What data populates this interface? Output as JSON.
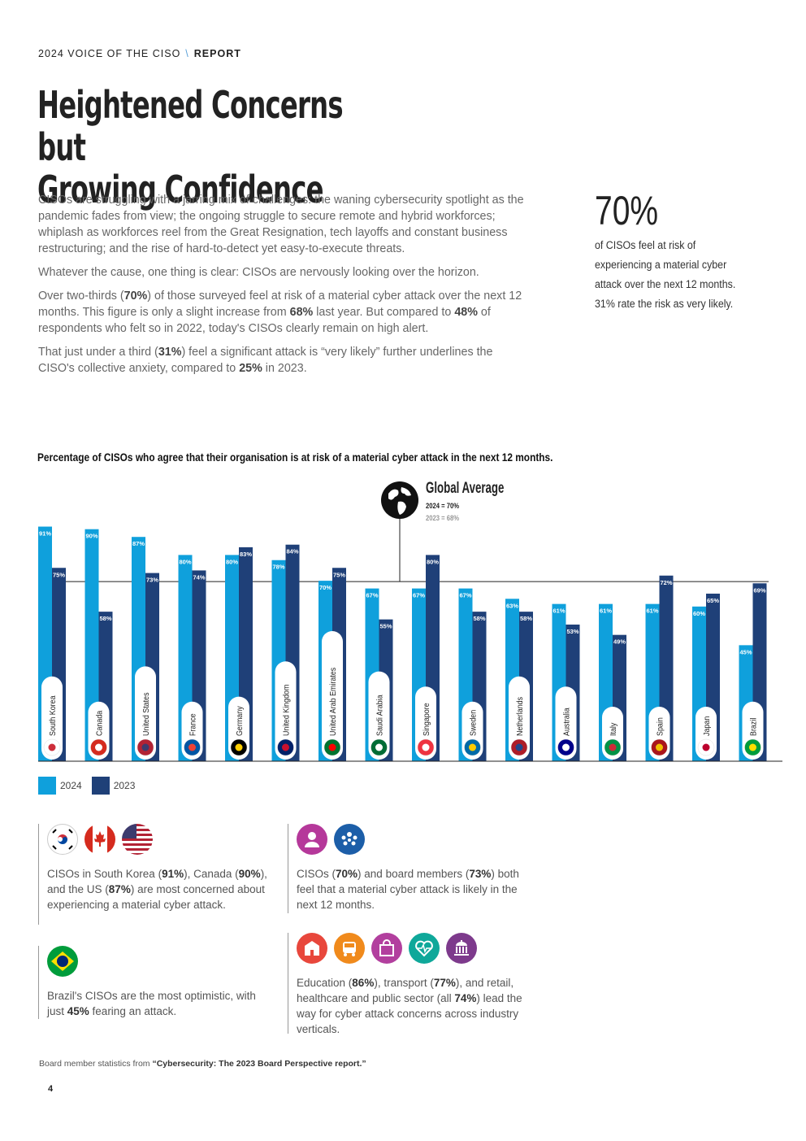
{
  "header": {
    "left": "2024 VOICE OF THE CISO",
    "sep": "\\",
    "right": "REPORT"
  },
  "title": {
    "line1": "Heightened Concerns but",
    "line2": "Growing Confidence"
  },
  "body": {
    "p1": "CISOs are struggling with a jarring mix of challenges: the waning cybersecurity spotlight as the pandemic fades from view; the ongoing struggle to secure remote and hybrid workforces; whiplash as workforces reel from the Great Resignation, tech layoffs and constant business restructuring; and the rise of hard-to-detect yet easy-to-execute threats.",
    "p2": "Whatever the cause, one thing is clear: CISOs are nervously looking over the horizon.",
    "p3a": "Over two-thirds (",
    "p3b": "70%",
    "p3c": ") of those surveyed feel at risk of a material cyber attack over the next 12 months. This figure is only a slight increase from ",
    "p3d": "68%",
    "p3e": " last year. But compared to ",
    "p3f": "48%",
    "p3g": " of respondents who felt so in 2022, today's CISOs clearly remain on high alert.",
    "p4a": "That just under a third (",
    "p4b": "31%",
    "p4c": ") feel a significant attack is “very likely” further underlines the CISO's collective anxiety, compared to ",
    "p4d": "25%",
    "p4e": " in 2023."
  },
  "stat": {
    "value": "70%",
    "l1": "of CISOs feel at risk of",
    "l2": "experiencing a material cyber",
    "l3": "attack over the next 12 months.",
    "l4": "31% rate the risk as very likely."
  },
  "chart_title": "Percentage of CISOs who agree that their organisation is at risk of a material cyber attack in the next 12 months.",
  "chart_data": {
    "type": "bar",
    "categories": [
      "South Korea",
      "Canada",
      "United States",
      "France",
      "Germany",
      "United Kingdom",
      "United Arab Emirates",
      "Saudi Arabia",
      "Singapore",
      "Sweden",
      "Netherlands",
      "Australia",
      "Italy",
      "Spain",
      "Japan",
      "Brazil"
    ],
    "series": [
      {
        "name": "2024",
        "values": [
          91,
          90,
          87,
          80,
          80,
          78,
          70,
          67,
          67,
          67,
          63,
          61,
          61,
          61,
          60,
          45
        ],
        "color": "#0fa0dc"
      },
      {
        "name": "2023",
        "values": [
          75,
          58,
          73,
          74,
          83,
          84,
          75,
          55,
          80,
          58,
          58,
          53,
          49,
          72,
          65,
          69
        ],
        "color": "#1f4078"
      }
    ],
    "ylim": [
      0,
      100
    ],
    "reference": {
      "label": "Global Average",
      "line1": "2024 = 70%",
      "line2": "2023 = 68%",
      "value": 70
    },
    "legend": "bottom-left"
  },
  "panels": {
    "top_left": "CISOs in South Korea (__91%__), Canada (__90%__), and the US (__87%__) are most concerned about experiencing a material cyber attack.",
    "bottom_left": "Brazil's CISOs are the most optimistic, with just __45%__ fearing an attack.",
    "top_right": "CISOs (__70%__) and board members (__73%__) both feel that a material cyber attack is likely in the next 12 months.",
    "bottom_right": "Education (__86%__), transport (__77%__), and retail, healthcare and public sector (all __74%__) lead the way for cyber attack concerns across industry verticals."
  },
  "footnote": {
    "prefix": "Board member statistics from ",
    "source": "“Cybersecurity: The 2023 Board Perspective report.”"
  },
  "page_number": "4"
}
